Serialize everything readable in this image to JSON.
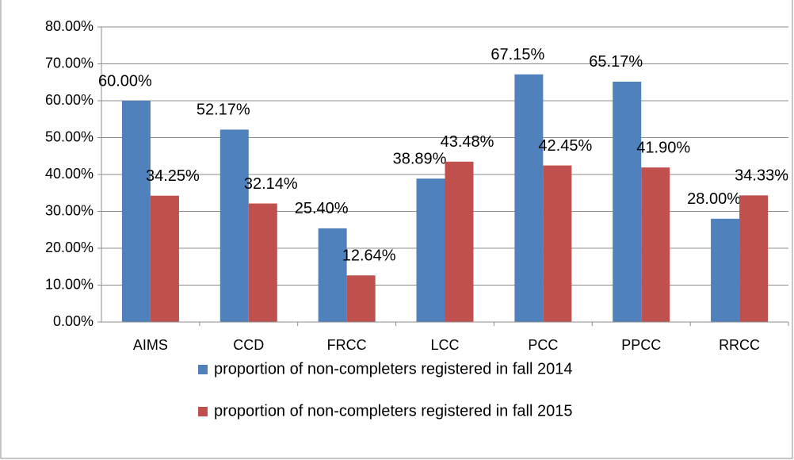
{
  "chart_data": {
    "type": "bar",
    "categories": [
      "AIMS",
      "CCD",
      "FRCC",
      "LCC",
      "PCC",
      "PPCC",
      "RRCC"
    ],
    "series": [
      {
        "name": "proportion of non-completers registered in fall 2014",
        "color": "#4f81bd",
        "values": [
          60.0,
          52.17,
          25.4,
          38.89,
          67.15,
          65.17,
          28.0
        ],
        "value_labels": [
          "60.00%",
          "52.17%",
          "25.40%",
          "38.89%",
          "67.15%",
          "65.17%",
          "28.00%"
        ]
      },
      {
        "name": "proportion of non-completers registered in fall 2015",
        "color": "#c0504d",
        "values": [
          34.25,
          32.14,
          12.64,
          43.48,
          42.45,
          41.9,
          34.33
        ],
        "value_labels": [
          "34.25%",
          "32.14%",
          "12.64%",
          "43.48%",
          "42.45%",
          "41.90%",
          "34.33%"
        ]
      }
    ],
    "ylim": [
      0,
      80
    ],
    "yticks": [
      {
        "value": 0,
        "label": "0.00%"
      },
      {
        "value": 10,
        "label": "10.00%"
      },
      {
        "value": 20,
        "label": "20.00%"
      },
      {
        "value": 30,
        "label": "30.00%"
      },
      {
        "value": 40,
        "label": "40.00%"
      },
      {
        "value": 50,
        "label": "50.00%"
      },
      {
        "value": 60,
        "label": "60.00%"
      },
      {
        "value": 70,
        "label": "70.00%"
      },
      {
        "value": 80,
        "label": "80.00%"
      }
    ],
    "grid": true,
    "legend": "bottom"
  }
}
